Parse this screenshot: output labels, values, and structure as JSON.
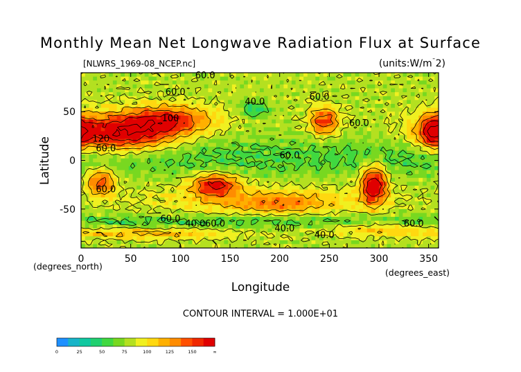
{
  "chart_data": {
    "type": "heatmap",
    "title": "Monthly Mean Net Longwave Radiation Flux at Surface",
    "subtitle": "[NLWRS_1969-08_NCEP.nc]",
    "units": "(units:W/m^2)",
    "xlabel": "Longitude",
    "ylabel": "Latitude",
    "x_units_note": "(degrees_east)",
    "y_units_note": "(degrees_north)",
    "xlim": [
      0,
      360
    ],
    "ylim": [
      -90,
      90
    ],
    "x_ticks": [
      0,
      50,
      100,
      150,
      200,
      250,
      300,
      350
    ],
    "y_ticks": [
      50,
      0,
      -50
    ],
    "contour_interval_text": "CONTOUR INTERVAL = 1.000E+01",
    "contour_labels": [
      {
        "text": "60.0",
        "lon": 125,
        "lat": 87
      },
      {
        "text": "60.0",
        "lon": 95,
        "lat": 70
      },
      {
        "text": "40.0",
        "lon": 175,
        "lat": 60
      },
      {
        "text": "60.0",
        "lon": 240,
        "lat": 65
      },
      {
        "text": "100",
        "lon": 90,
        "lat": 43
      },
      {
        "text": "60.0",
        "lon": 280,
        "lat": 38
      },
      {
        "text": "120",
        "lon": 20,
        "lat": 22
      },
      {
        "text": "60.0",
        "lon": 25,
        "lat": 12
      },
      {
        "text": "60.0",
        "lon": 210,
        "lat": 5
      },
      {
        "text": "60.0",
        "lon": 25,
        "lat": -30
      },
      {
        "text": "60.0",
        "lon": 90,
        "lat": -60
      },
      {
        "text": "40.0",
        "lon": 115,
        "lat": -65
      },
      {
        "text": "60.0",
        "lon": 135,
        "lat": -65
      },
      {
        "text": "40.0",
        "lon": 205,
        "lat": -70
      },
      {
        "text": "60.0",
        "lon": 335,
        "lat": -65
      },
      {
        "text": "40.0",
        "lon": 245,
        "lat": -77
      }
    ],
    "colorbar": {
      "ticks": [
        "0",
        "25",
        "50",
        "75",
        "100",
        "125",
        "150",
        "∞"
      ],
      "colors": [
        "#1e90ff",
        "#18b4c8",
        "#10c8a0",
        "#20d070",
        "#40d840",
        "#78d820",
        "#b4e020",
        "#f0f020",
        "#ffd810",
        "#ffb000",
        "#ff8c00",
        "#ff5000",
        "#f02800",
        "#e00000"
      ]
    },
    "color_levels": [
      0,
      10,
      20,
      30,
      40,
      50,
      60,
      70,
      80,
      90,
      100,
      110,
      120,
      130,
      140
    ]
  }
}
